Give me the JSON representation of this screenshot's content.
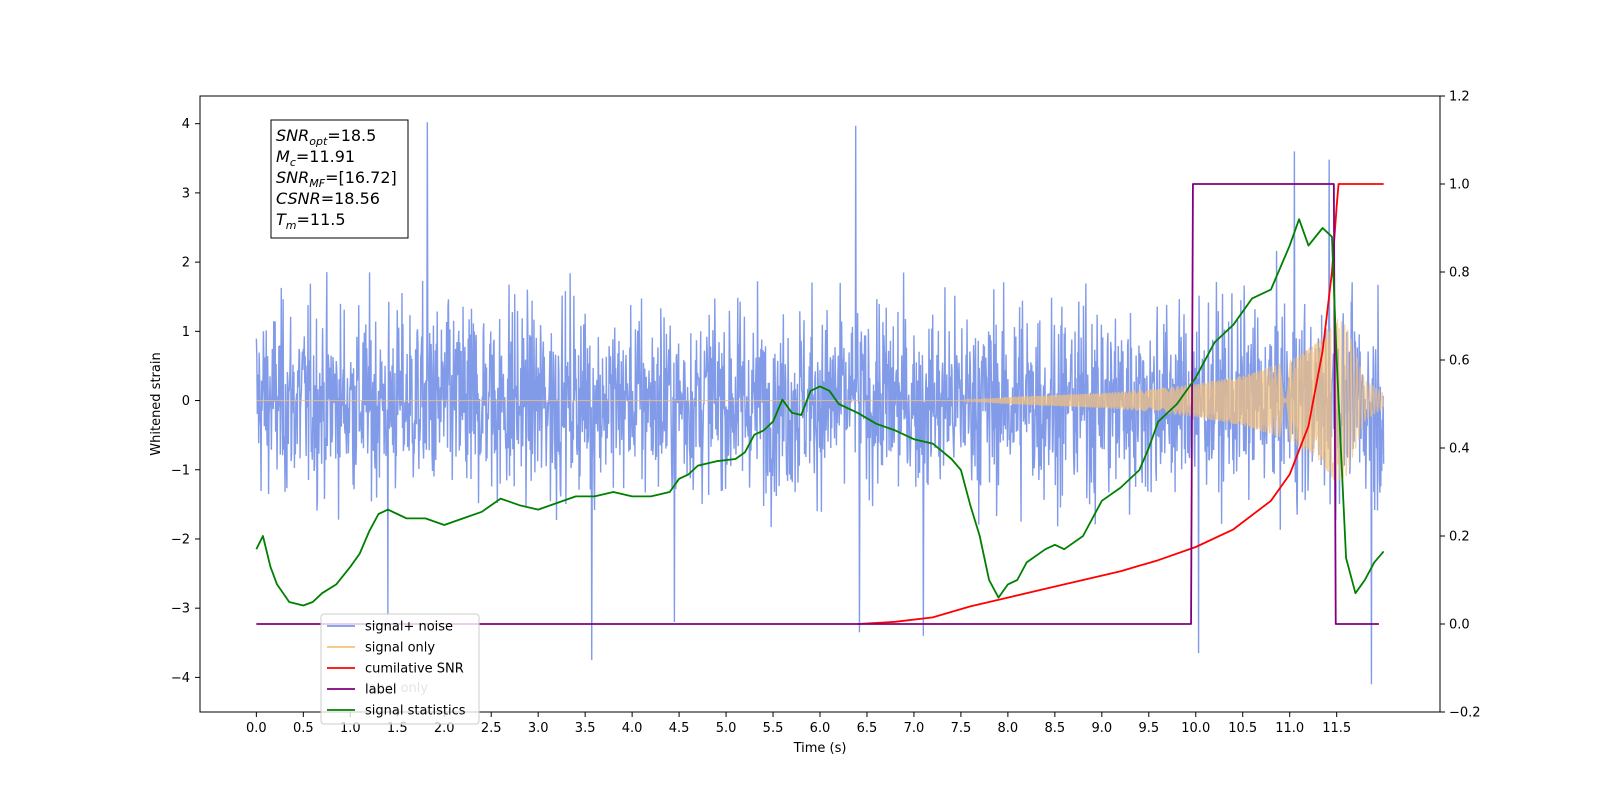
{
  "chart_data": {
    "type": "line",
    "xlabel": "Time (s)",
    "ylabel_left": "Whitened strain",
    "ylabel_right": "",
    "xlim": [
      -0.6,
      12.6
    ],
    "ylim_left": [
      -4.5,
      4.4
    ],
    "ylim_right": [
      -0.2,
      1.2
    ],
    "x_ticks": [
      0.0,
      0.5,
      1.0,
      1.5,
      2.0,
      2.5,
      3.0,
      3.5,
      4.0,
      4.5,
      5.0,
      5.5,
      6.0,
      6.5,
      7.0,
      7.5,
      8.0,
      8.5,
      9.0,
      9.5,
      10.0,
      10.5,
      11.0,
      11.5
    ],
    "x_tick_labels": [
      "0.0",
      "0.5",
      "1.0",
      "1.5",
      "2.0",
      "2.5",
      "3.0",
      "3.5",
      "4.0",
      "4.5",
      "5.0",
      "5.5",
      "6.0",
      "6.5",
      "7.0",
      "7.5",
      "8.0",
      "8.5",
      "9.0",
      "9.5",
      "10.0",
      "10.5",
      "11.0",
      "11.5"
    ],
    "y_left_ticks": [
      4,
      3,
      2,
      1,
      0,
      -1,
      -2,
      -3,
      -4
    ],
    "y_left_tick_labels": [
      "4",
      "3",
      "2",
      "1",
      "0",
      "−1",
      "−2",
      "−3",
      "−4"
    ],
    "y_right_ticks": [
      1.2,
      1.0,
      0.8,
      0.6,
      0.4,
      0.2,
      0.0,
      -0.2
    ],
    "y_right_tick_labels": [
      "1.2",
      "1.0",
      "0.8",
      "0.6",
      "0.4",
      "0.2",
      "0.0",
      "−0.2"
    ],
    "grid": false,
    "legend_position": "bottom-left",
    "legend": [
      {
        "label": "signal+ noise",
        "color": "#7b96e8"
      },
      {
        "label": "signal only",
        "color": "#f5c27a"
      },
      {
        "label": "cumilative SNR",
        "color": "#ff0000"
      },
      {
        "label": "label",
        "color": "#800080"
      },
      {
        "label": "signal statistics",
        "color": "#008000"
      }
    ],
    "occluded_legend_text": "label only",
    "info_box": [
      {
        "base": "SNR",
        "sub": "opt",
        "text": "=18.5"
      },
      {
        "base": "M",
        "sub": "c",
        "text": "=11.91"
      },
      {
        "base": "SNR",
        "sub": "MF",
        "text": "=[16.72]"
      },
      {
        "base": "CSNR",
        "sub": "",
        "text": "=18.56"
      },
      {
        "base": "T",
        "sub": "m",
        "text": "=11.5"
      }
    ],
    "series": [
      {
        "name": "signal+ noise",
        "axis": "left",
        "color": "#7b96e8",
        "note": "dense noise between about -2 and +2 whitened strain across t=0.0 to 12.0 s",
        "peaks": [
          [
            1.82,
            4.02
          ],
          [
            6.38,
            3.97
          ],
          [
            11.05,
            3.6
          ],
          [
            11.42,
            3.48
          ],
          [
            3.57,
            -3.75
          ],
          [
            11.87,
            -4.1
          ],
          [
            10.03,
            -3.65
          ],
          [
            7.1,
            -3.4
          ],
          [
            6.42,
            -3.35
          ],
          [
            4.45,
            -3.2
          ],
          [
            1.4,
            -3.1
          ]
        ]
      },
      {
        "name": "signal only",
        "axis": "left",
        "color": "#f5c27a",
        "note": "chirp oscillation, amplitude near 0 until ~8 s, growing to about 1.2 at 11.5 s, ending near 0.1 at 12.0 s",
        "envelope": [
          [
            0.0,
            0.0
          ],
          [
            7.5,
            0.0
          ],
          [
            8.0,
            0.05
          ],
          [
            8.5,
            0.08
          ],
          [
            9.0,
            0.11
          ],
          [
            9.5,
            0.16
          ],
          [
            10.0,
            0.24
          ],
          [
            10.5,
            0.36
          ],
          [
            11.0,
            0.58
          ],
          [
            11.3,
            0.85
          ],
          [
            11.5,
            1.2
          ],
          [
            11.6,
            1.1
          ],
          [
            11.8,
            0.3
          ],
          [
            12.0,
            0.1
          ]
        ]
      },
      {
        "name": "cumilative SNR",
        "axis": "right",
        "color": "#ff0000",
        "points": [
          [
            6.4,
            0.0
          ],
          [
            6.8,
            0.005
          ],
          [
            7.2,
            0.015
          ],
          [
            7.6,
            0.04
          ],
          [
            8.0,
            0.06
          ],
          [
            8.4,
            0.08
          ],
          [
            8.8,
            0.1
          ],
          [
            9.2,
            0.12
          ],
          [
            9.6,
            0.145
          ],
          [
            10.0,
            0.175
          ],
          [
            10.4,
            0.215
          ],
          [
            10.8,
            0.28
          ],
          [
            11.0,
            0.34
          ],
          [
            11.2,
            0.45
          ],
          [
            11.35,
            0.62
          ],
          [
            11.45,
            0.8
          ],
          [
            11.5,
            0.95
          ],
          [
            11.52,
            1.0
          ],
          [
            12.0,
            1.0
          ]
        ]
      },
      {
        "name": "label",
        "axis": "right",
        "color": "#800080",
        "points": [
          [
            0.0,
            0.0
          ],
          [
            9.95,
            0.0
          ],
          [
            9.97,
            1.0
          ],
          [
            11.47,
            1.0
          ],
          [
            11.49,
            0.0
          ],
          [
            11.95,
            0.0
          ]
        ]
      },
      {
        "name": "signal statistics",
        "axis": "right",
        "color": "#008000",
        "points": [
          [
            0.0,
            0.17
          ],
          [
            0.07,
            0.2
          ],
          [
            0.15,
            0.13
          ],
          [
            0.22,
            0.09
          ],
          [
            0.35,
            0.05
          ],
          [
            0.5,
            0.042
          ],
          [
            0.6,
            0.05
          ],
          [
            0.7,
            0.07
          ],
          [
            0.85,
            0.09
          ],
          [
            1.0,
            0.13
          ],
          [
            1.1,
            0.16
          ],
          [
            1.2,
            0.21
          ],
          [
            1.3,
            0.25
          ],
          [
            1.4,
            0.26
          ],
          [
            1.5,
            0.25
          ],
          [
            1.6,
            0.24
          ],
          [
            1.8,
            0.24
          ],
          [
            2.0,
            0.225
          ],
          [
            2.2,
            0.24
          ],
          [
            2.4,
            0.255
          ],
          [
            2.6,
            0.285
          ],
          [
            2.8,
            0.27
          ],
          [
            3.0,
            0.26
          ],
          [
            3.2,
            0.275
          ],
          [
            3.4,
            0.29
          ],
          [
            3.6,
            0.29
          ],
          [
            3.8,
            0.3
          ],
          [
            4.0,
            0.29
          ],
          [
            4.2,
            0.29
          ],
          [
            4.4,
            0.3
          ],
          [
            4.5,
            0.33
          ],
          [
            4.6,
            0.34
          ],
          [
            4.7,
            0.36
          ],
          [
            4.9,
            0.37
          ],
          [
            5.1,
            0.375
          ],
          [
            5.2,
            0.39
          ],
          [
            5.3,
            0.43
          ],
          [
            5.4,
            0.44
          ],
          [
            5.5,
            0.46
          ],
          [
            5.6,
            0.51
          ],
          [
            5.7,
            0.48
          ],
          [
            5.8,
            0.475
          ],
          [
            5.9,
            0.53
          ],
          [
            6.0,
            0.54
          ],
          [
            6.1,
            0.53
          ],
          [
            6.2,
            0.5
          ],
          [
            6.4,
            0.48
          ],
          [
            6.6,
            0.455
          ],
          [
            6.8,
            0.44
          ],
          [
            7.0,
            0.42
          ],
          [
            7.2,
            0.41
          ],
          [
            7.4,
            0.375
          ],
          [
            7.5,
            0.35
          ],
          [
            7.6,
            0.27
          ],
          [
            7.7,
            0.2
          ],
          [
            7.8,
            0.1
          ],
          [
            7.9,
            0.06
          ],
          [
            8.0,
            0.09
          ],
          [
            8.1,
            0.1
          ],
          [
            8.2,
            0.14
          ],
          [
            8.4,
            0.17
          ],
          [
            8.5,
            0.18
          ],
          [
            8.6,
            0.17
          ],
          [
            8.8,
            0.2
          ],
          [
            9.0,
            0.28
          ],
          [
            9.2,
            0.31
          ],
          [
            9.4,
            0.35
          ],
          [
            9.5,
            0.4
          ],
          [
            9.6,
            0.46
          ],
          [
            9.8,
            0.5
          ],
          [
            10.0,
            0.56
          ],
          [
            10.2,
            0.64
          ],
          [
            10.4,
            0.68
          ],
          [
            10.6,
            0.74
          ],
          [
            10.8,
            0.76
          ],
          [
            11.0,
            0.86
          ],
          [
            11.1,
            0.92
          ],
          [
            11.2,
            0.86
          ],
          [
            11.35,
            0.9
          ],
          [
            11.45,
            0.88
          ],
          [
            11.5,
            0.6
          ],
          [
            11.6,
            0.15
          ],
          [
            11.7,
            0.07
          ],
          [
            11.8,
            0.1
          ],
          [
            11.9,
            0.14
          ],
          [
            12.0,
            0.165
          ]
        ]
      }
    ]
  }
}
